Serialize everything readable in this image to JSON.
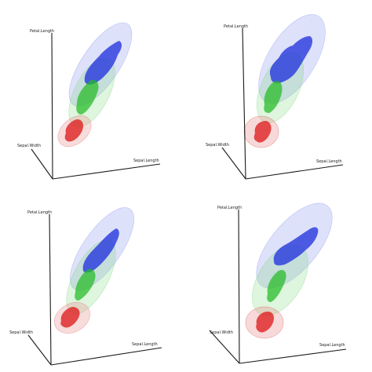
{
  "chart_data": [
    {
      "type": "3d-density-isosurface",
      "panel": "top-left",
      "axes": {
        "x": "Sepal.Length",
        "y": "Sepal.Width",
        "z": "Petal.Length"
      },
      "grid": false,
      "series": [
        {
          "color": "#dd2222"
        },
        {
          "color": "#22bb22"
        },
        {
          "color": "#2233dd"
        }
      ]
    },
    {
      "type": "3d-density-isosurface",
      "panel": "top-right",
      "axes": {
        "x": "Sepal.Length",
        "y": "Sepal.Width",
        "z": "Petal.Length"
      },
      "grid": false,
      "series": [
        {
          "color": "#dd2222"
        },
        {
          "color": "#22bb22"
        },
        {
          "color": "#2233dd"
        }
      ]
    },
    {
      "type": "3d-density-isosurface",
      "panel": "bottom-left",
      "axes": {
        "x": "Sepal.Length",
        "y": "Sepal.Width",
        "z": "Petal.Length"
      },
      "grid": false,
      "series": [
        {
          "color": "#dd2222"
        },
        {
          "color": "#22bb22"
        },
        {
          "color": "#2233dd"
        }
      ]
    },
    {
      "type": "3d-density-isosurface",
      "panel": "bottom-right",
      "axes": {
        "x": "Sepal.Length",
        "y": "Sepal.Width",
        "z": "Petal.Length"
      },
      "grid": false,
      "series": [
        {
          "color": "#dd2222"
        },
        {
          "color": "#22bb22"
        },
        {
          "color": "#2233dd"
        }
      ]
    }
  ]
}
